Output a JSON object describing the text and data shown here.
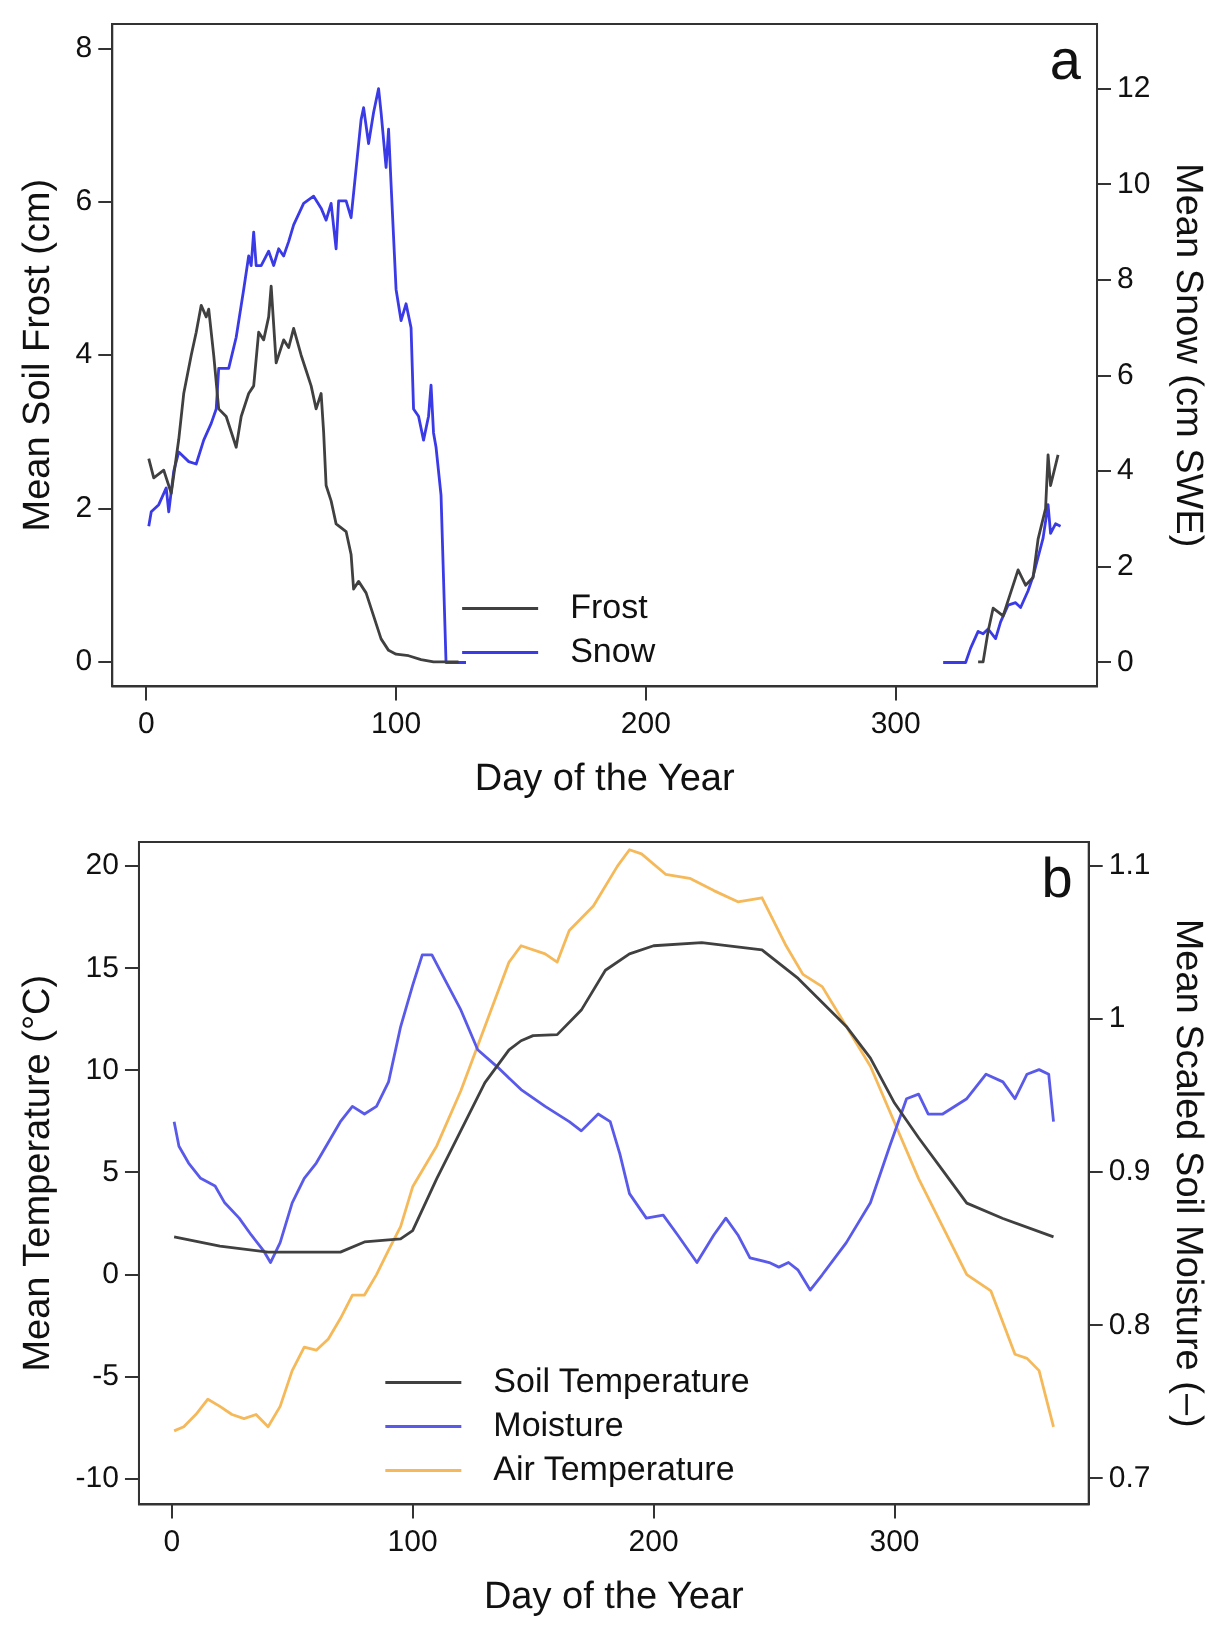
{
  "chart_data": [
    {
      "type": "line",
      "xlabel": "Day of the Year",
      "ylabel": "Mean Soil Frost (cm)",
      "y2label": "Mean Snow (cm SWE)",
      "annotations": [
        "a"
      ],
      "xlim": [
        -13.6,
        380.6
      ],
      "xticks": [
        0,
        100,
        200,
        300
      ],
      "ylim": [
        -0.32,
        8.32
      ],
      "yticks": [
        0,
        2,
        4,
        6,
        8
      ],
      "y2lim": [
        -0.5,
        13.35
      ],
      "y2ticks": [
        0,
        2,
        4,
        6,
        8,
        10,
        12
      ],
      "grid": false,
      "legend": "bottom",
      "marker": "none",
      "line_style": "solid",
      "series": [
        {
          "name": "Frost",
          "color": "#404040",
          "x": [
            1,
            3,
            7,
            8,
            10,
            13,
            15,
            18,
            20,
            22,
            24,
            25,
            27,
            29,
            32,
            35,
            36,
            38,
            41,
            43,
            45,
            47,
            49,
            50,
            52,
            55,
            57,
            59,
            62,
            64,
            66,
            68,
            70,
            71,
            72,
            74,
            76,
            80,
            82,
            83,
            85,
            88,
            91,
            94,
            97,
            100,
            105,
            110,
            115,
            125,
            126,
            333,
            335,
            337,
            339,
            343,
            346,
            349,
            352,
            355,
            357,
            360,
            361,
            362,
            365
          ],
          "values": [
            2.65,
            2.4,
            2.5,
            2.4,
            2.2,
            2.9,
            3.5,
            4.0,
            4.3,
            4.65,
            4.5,
            4.6,
            4.0,
            3.3,
            3.2,
            2.9,
            2.8,
            3.2,
            3.5,
            3.6,
            4.3,
            4.2,
            4.5,
            4.9,
            3.9,
            4.2,
            4.1,
            4.35,
            4.0,
            3.8,
            3.6,
            3.3,
            3.5,
            3.0,
            2.3,
            2.1,
            1.8,
            1.7,
            1.4,
            0.95,
            1.05,
            0.9,
            0.6,
            0.3,
            0.15,
            0.1,
            0.08,
            0.03,
            0,
            0,
            null,
            0,
            0,
            0.4,
            0.7,
            0.6,
            0.9,
            1.2,
            1.0,
            1.1,
            1.6,
            2.0,
            2.7,
            2.3,
            2.7
          ]
        },
        {
          "name": "Snow",
          "color": "#3a3ae6",
          "axis": "y2",
          "x": [
            1,
            2,
            5,
            8,
            9,
            11,
            13,
            17,
            20,
            23,
            26,
            28,
            29,
            33,
            36,
            39,
            41,
            42,
            43,
            44,
            46,
            49,
            51,
            53,
            55,
            57,
            59,
            63,
            67,
            70,
            72,
            74,
            76,
            77,
            80,
            82,
            86,
            87,
            89,
            91,
            93,
            94,
            96,
            97,
            98,
            100,
            102,
            104,
            106,
            107,
            109,
            111,
            113,
            114,
            115,
            116,
            118,
            120,
            128,
            129,
            319,
            328,
            330,
            333,
            335,
            337,
            340,
            342,
            345,
            348,
            350,
            353,
            355,
            357,
            359,
            361,
            362,
            364,
            366
          ],
          "values": [
            2.85,
            3.15,
            3.3,
            3.65,
            3.15,
            4.0,
            4.4,
            4.2,
            4.15,
            4.65,
            5.0,
            5.3,
            6.15,
            6.15,
            6.8,
            7.8,
            8.5,
            8.3,
            9.0,
            8.3,
            8.3,
            8.6,
            8.3,
            8.65,
            8.5,
            8.8,
            9.15,
            9.6,
            9.75,
            9.5,
            9.25,
            9.6,
            8.65,
            9.65,
            9.65,
            9.3,
            11.35,
            11.6,
            10.85,
            11.5,
            12.0,
            11.5,
            10.35,
            11.15,
            10.0,
            7.8,
            7.15,
            7.5,
            7.0,
            5.3,
            5.15,
            4.65,
            5.15,
            5.8,
            4.8,
            4.5,
            3.5,
            0,
            0,
            null,
            0,
            0,
            0.3,
            0.65,
            0.6,
            0.7,
            0.5,
            0.85,
            1.2,
            1.25,
            1.15,
            1.5,
            1.8,
            2.2,
            2.6,
            3.3,
            2.7,
            2.9,
            2.85
          ]
        }
      ]
    },
    {
      "type": "line",
      "xlabel": "Day of the Year",
      "ylabel": "Mean Temperature (°C)",
      "y2label": "Mean Scaled Soil Moisture (–)",
      "annotations": [
        "b"
      ],
      "xlim": [
        -13.6,
        380.6
      ],
      "xticks": [
        0,
        100,
        200,
        300
      ],
      "ylim": [
        -11.25,
        21.18
      ],
      "yticks": [
        -10,
        -5,
        0,
        5,
        10,
        15,
        20
      ],
      "y2lim": [
        0.683,
        1.1157
      ],
      "y2ticks": [
        0.7,
        0.8,
        0.9,
        1.0,
        1.1
      ],
      "grid": false,
      "legend": "bottom",
      "marker": "none",
      "line_style": "solid",
      "series": [
        {
          "name": "Soil Temperature",
          "color": "#404040",
          "x": [
            1,
            20,
            40,
            70,
            80,
            95,
            100,
            110,
            120,
            130,
            140,
            145,
            150,
            160,
            170,
            180,
            190,
            200,
            220,
            245,
            260,
            280,
            290,
            300,
            310,
            320,
            330,
            345,
            366
          ],
          "values": [
            1.85,
            1.4,
            1.1,
            1.1,
            1.6,
            1.75,
            2.15,
            4.7,
            7.05,
            9.4,
            11.0,
            11.45,
            11.7,
            11.75,
            12.95,
            14.9,
            15.7,
            16.1,
            16.25,
            15.9,
            14.5,
            12.15,
            10.6,
            8.4,
            6.7,
            5.1,
            3.5,
            2.75,
            1.85
          ]
        },
        {
          "name": "Moisture",
          "color": "#5a5aea",
          "axis": "y2",
          "x": [
            1,
            3,
            7,
            12,
            18,
            22,
            28,
            33,
            38,
            41,
            45,
            50,
            55,
            60,
            70,
            75,
            80,
            85,
            90,
            95,
            100,
            104,
            108,
            113,
            120,
            127,
            135,
            145,
            155,
            165,
            170,
            177,
            182,
            186,
            190,
            197,
            204,
            210,
            218,
            225,
            230,
            235,
            240,
            248,
            252,
            256,
            260,
            265,
            270,
            280,
            290,
            298,
            305,
            310,
            314,
            320,
            330,
            338,
            345,
            350,
            355,
            360,
            364,
            366
          ],
          "values": [
            0.933,
            0.917,
            0.906,
            0.896,
            0.891,
            0.88,
            0.87,
            0.859,
            0.849,
            0.841,
            0.854,
            0.88,
            0.896,
            0.906,
            0.933,
            0.943,
            0.938,
            0.943,
            0.959,
            0.995,
            1.022,
            1.042,
            1.042,
            1.027,
            1.006,
            0.98,
            0.969,
            0.954,
            0.943,
            0.933,
            0.927,
            0.938,
            0.933,
            0.912,
            0.886,
            0.87,
            0.872,
            0.859,
            0.841,
            0.859,
            0.87,
            0.859,
            0.844,
            0.841,
            0.838,
            0.841,
            0.836,
            0.823,
            0.833,
            0.854,
            0.88,
            0.917,
            0.948,
            0.951,
            0.938,
            0.938,
            0.948,
            0.964,
            0.959,
            0.948,
            0.964,
            0.967,
            0.964,
            0.933
          ]
        },
        {
          "name": "Air Temperature",
          "color": "#f5b95a",
          "x": [
            1,
            5,
            10,
            15,
            20,
            25,
            30,
            35,
            40,
            45,
            50,
            55,
            60,
            65,
            70,
            75,
            80,
            85,
            90,
            95,
            100,
            110,
            120,
            130,
            140,
            145,
            155,
            160,
            165,
            175,
            185,
            190,
            195,
            205,
            215,
            225,
            235,
            245,
            255,
            262,
            270,
            280,
            290,
            300,
            310,
            320,
            330,
            340,
            345,
            350,
            355,
            360,
            366
          ],
          "values": [
            -7.65,
            -7.45,
            -6.85,
            -6.1,
            -6.45,
            -6.85,
            -7.05,
            -6.85,
            -7.45,
            -6.45,
            -4.7,
            -3.55,
            -3.7,
            -3.15,
            -2.15,
            -1.0,
            -1.0,
            0.0,
            1.2,
            2.35,
            4.3,
            6.3,
            9.0,
            12.15,
            15.3,
            16.1,
            15.7,
            15.3,
            16.85,
            18.05,
            20.0,
            20.8,
            20.6,
            19.6,
            19.4,
            18.8,
            18.25,
            18.45,
            16.1,
            14.7,
            14.1,
            12.15,
            10.2,
            7.45,
            4.7,
            2.35,
            0.0,
            -0.8,
            -2.35,
            -3.9,
            -4.1,
            -4.7,
            -7.45
          ]
        }
      ]
    }
  ]
}
